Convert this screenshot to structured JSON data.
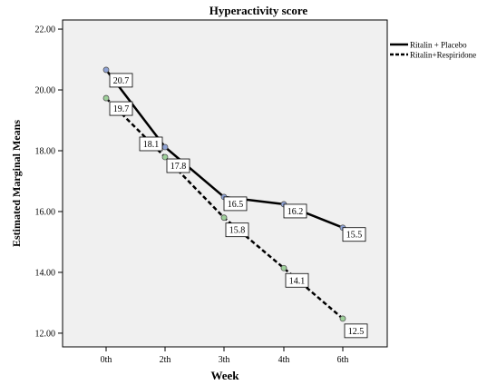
{
  "chart_data": {
    "type": "line",
    "title": "Hyperactivity score",
    "xlabel": "Week",
    "ylabel": "Estimated Marginal Means",
    "categories": [
      "0th",
      "2th",
      "3th",
      "4th",
      "6th"
    ],
    "ylim": [
      11.55,
      22.3
    ],
    "yticks": [
      "12.00",
      "14.00",
      "16.00",
      "18.00",
      "20.00",
      "22.00"
    ],
    "grid": false,
    "legend_position": "top-right",
    "series": [
      {
        "name": "Ritalin + Placebo",
        "values": [
          20.66,
          18.12,
          16.48,
          16.24,
          15.47
        ],
        "labels": [
          "20.7",
          "18.1",
          "16.5",
          "16.2",
          "15.5"
        ],
        "line_style": "solid",
        "line_color": "#000000",
        "marker_color": "#8fa3d6"
      },
      {
        "name": "Ritalin+Respiridone",
        "values": [
          19.73,
          17.79,
          15.8,
          14.14,
          12.48
        ],
        "labels": [
          "19.7",
          "17.8",
          "15.8",
          "14.1",
          "12.5"
        ],
        "line_style": "dashed",
        "line_color": "#000000",
        "marker_color": "#9ed09a"
      }
    ],
    "plot_background": "#f0f0f0"
  }
}
